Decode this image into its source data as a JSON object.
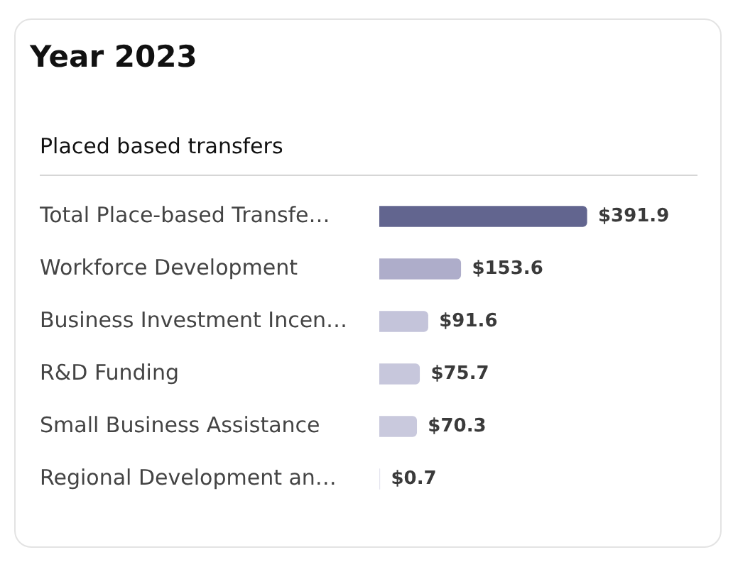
{
  "chart_data": {
    "type": "bar",
    "orientation": "horizontal",
    "title": "Year 2023",
    "subtitle": "Placed based transfers",
    "categories": [
      "Total Place-based Transfe…",
      "Workforce Development",
      "Business Investment Incen…",
      "R&D Funding",
      "Small Business Assistance",
      "Regional Development an…"
    ],
    "values": [
      391.9,
      153.6,
      91.6,
      75.7,
      70.3,
      0.7
    ],
    "colors": [
      "#62658f",
      "#aeadca",
      "#c4c4da",
      "#c7c7dc",
      "#c9c9dd",
      "#e4e4ef"
    ],
    "value_labels": [
      "$391.9",
      "$153.6",
      "$91.6",
      "$75.7",
      "$70.3",
      "$0.7"
    ]
  }
}
